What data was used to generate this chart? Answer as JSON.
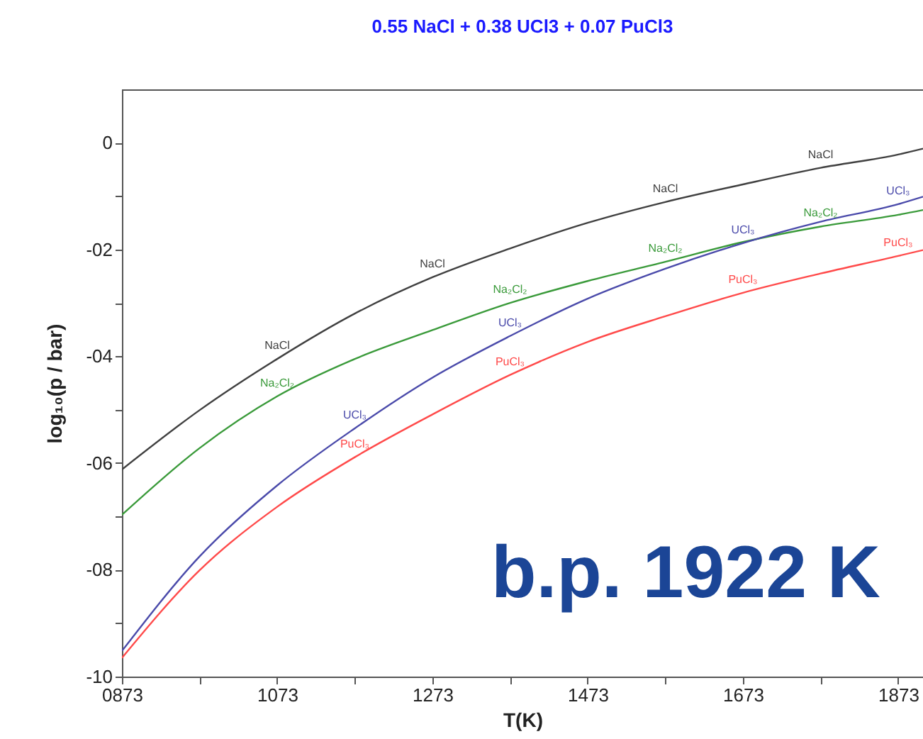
{
  "chart_data": {
    "type": "line",
    "title": "0.55 NaCl  +  0.38 UCl3  +  0.07 PuCl3",
    "xlabel": "T(K)",
    "ylabel": "log₁₀(p / bar)",
    "x": [
      873,
      973,
      1073,
      1173,
      1273,
      1373,
      1473,
      1573,
      1673,
      1773,
      1873,
      1905
    ],
    "series": [
      {
        "name": "NaCl",
        "color": "#404040",
        "values": [
          -6.12,
          -5.01,
          -4.05,
          -3.2,
          -2.52,
          -1.98,
          -1.5,
          -1.11,
          -0.78,
          -0.47,
          -0.22,
          -0.11
        ]
      },
      {
        "name": "Na₂Cl₂",
        "color": "#3a9a3a",
        "values": [
          -6.97,
          -5.72,
          -4.75,
          -4.05,
          -3.51,
          -3.0,
          -2.59,
          -2.23,
          -1.86,
          -1.57,
          -1.35,
          -1.26
        ]
      },
      {
        "name": "UCl₃",
        "color": "#4a4aaa",
        "values": [
          -9.52,
          -7.75,
          -6.42,
          -5.35,
          -4.4,
          -3.62,
          -2.92,
          -2.36,
          -1.88,
          -1.48,
          -1.15,
          -1.01
        ]
      },
      {
        "name": "PuCl₃",
        "color": "#ff4a4a",
        "values": [
          -9.65,
          -8.01,
          -6.82,
          -5.89,
          -5.09,
          -4.35,
          -3.73,
          -3.25,
          -2.81,
          -2.45,
          -2.12,
          -2.01
        ]
      }
    ],
    "annotations": [
      {
        "text": "NaCl",
        "x": 1273,
        "y": -2.52
      },
      {
        "text": "NaCl",
        "x": 1573,
        "y": -1.11
      },
      {
        "text": "NaCl",
        "x": 1773,
        "y": -0.47
      },
      {
        "text": "Na₂Cl₂",
        "x": 1373,
        "y": -3.0
      },
      {
        "text": "Na₂Cl₂",
        "x": 1573,
        "y": -2.23
      },
      {
        "text": "Na₂Cl₂",
        "x": 1773,
        "y": -1.57
      },
      {
        "text": "UCl₃",
        "x": 1373,
        "y": -3.62
      },
      {
        "text": "UCl₃",
        "x": 1673,
        "y": -1.88
      },
      {
        "text": "UCl₃",
        "x": 1873,
        "y": -1.15
      },
      {
        "text": "PuCl₃",
        "x": 1373,
        "y": -4.35
      },
      {
        "text": "PuCl₃",
        "x": 1673,
        "y": -2.81
      },
      {
        "text": "PuCl₃",
        "x": 1873,
        "y": -2.12
      },
      "b.p. 1922 K"
    ],
    "xlim": [
      873,
      1905
    ],
    "xticks": [
      {
        "value": 873,
        "label": "0873"
      },
      {
        "value": 973,
        "label": null
      },
      1073,
      {
        "value": 1173,
        "label": null
      },
      1273,
      {
        "value": 1373,
        "label": null
      },
      1473,
      {
        "value": 1573,
        "label": null
      },
      1673,
      {
        "value": 1773,
        "label": null
      },
      1873
    ],
    "ylim": [
      -10,
      1
    ],
    "yticks": [
      {
        "value": 0,
        "label": "0"
      },
      {
        "value": -1,
        "label": null
      },
      {
        "value": -2,
        "label": "-02"
      },
      {
        "value": -3,
        "label": null
      },
      {
        "value": -4,
        "label": "-04"
      },
      {
        "value": -5,
        "label": null
      },
      {
        "value": -6,
        "label": "-06"
      },
      {
        "value": -7,
        "label": null
      },
      {
        "value": -8,
        "label": "-08"
      },
      {
        "value": -9,
        "label": null
      },
      {
        "value": -10,
        "label": "-10"
      }
    ],
    "grid": false,
    "marker": "none",
    "line_style": "solid"
  }
}
